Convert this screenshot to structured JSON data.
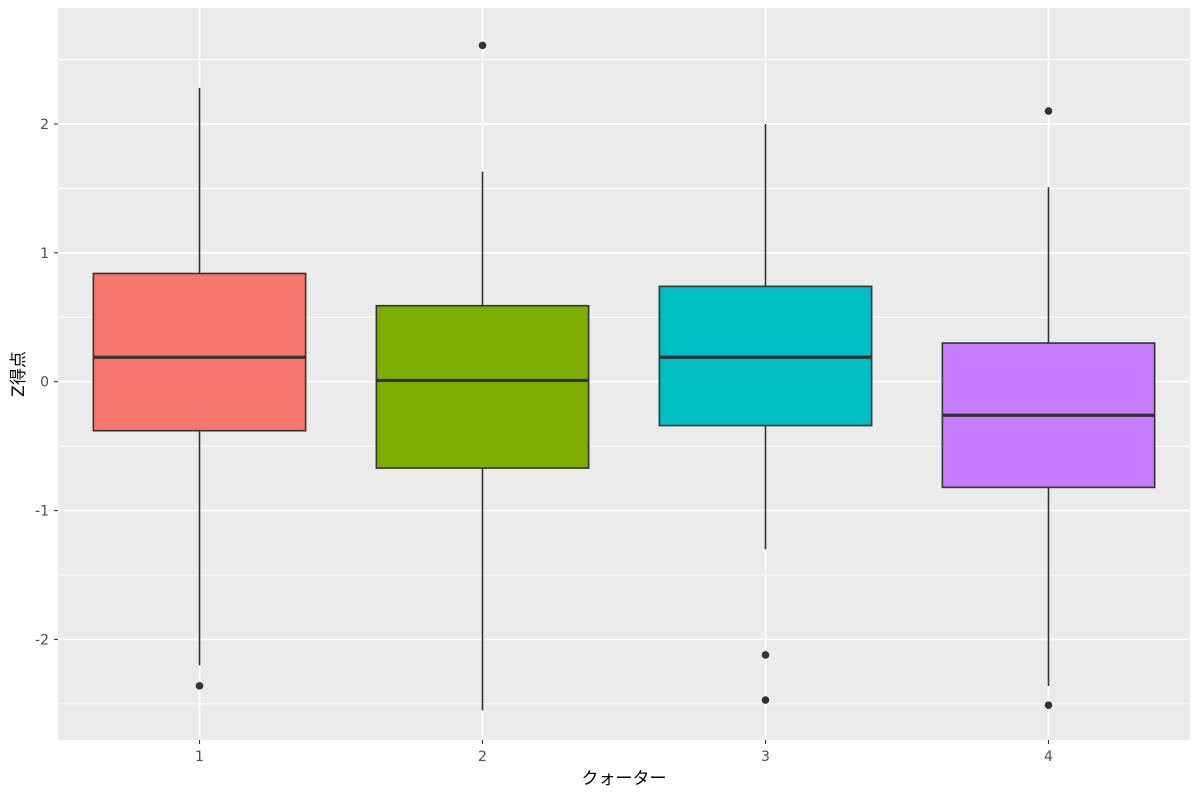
{
  "chart_data": {
    "type": "boxplot",
    "title": "",
    "xlabel": "クォーター",
    "ylabel": "Z得点",
    "categories": [
      "1",
      "2",
      "3",
      "4"
    ],
    "ylim": [
      -2.78,
      2.9
    ],
    "yticks": [
      -2,
      -1,
      0,
      1,
      2
    ],
    "grid": true,
    "legend": "none",
    "boxes": [
      {
        "category": "1",
        "whisker_low": -2.2,
        "q1": -0.38,
        "median": 0.19,
        "q3": 0.84,
        "whisker_high": 2.28,
        "outliers": [
          -2.36
        ],
        "color": "#F8766D"
      },
      {
        "category": "2",
        "whisker_low": -2.55,
        "q1": -0.67,
        "median": 0.01,
        "q3": 0.59,
        "whisker_high": 1.63,
        "outliers": [
          2.61
        ],
        "color": "#7CAE00"
      },
      {
        "category": "3",
        "whisker_low": -1.3,
        "q1": -0.34,
        "median": 0.19,
        "q3": 0.74,
        "whisker_high": 2.0,
        "outliers": [
          -2.12,
          -2.47
        ],
        "color": "#00BFC4"
      },
      {
        "category": "4",
        "whisker_low": -2.36,
        "q1": -0.82,
        "median": -0.26,
        "q3": 0.3,
        "whisker_high": 1.51,
        "outliers": [
          2.1,
          -2.51
        ],
        "color": "#C77CFF"
      }
    ],
    "colors": {
      "panel": "#EBEBEB",
      "grid": "#FFFFFF",
      "outline": "#333333"
    }
  }
}
